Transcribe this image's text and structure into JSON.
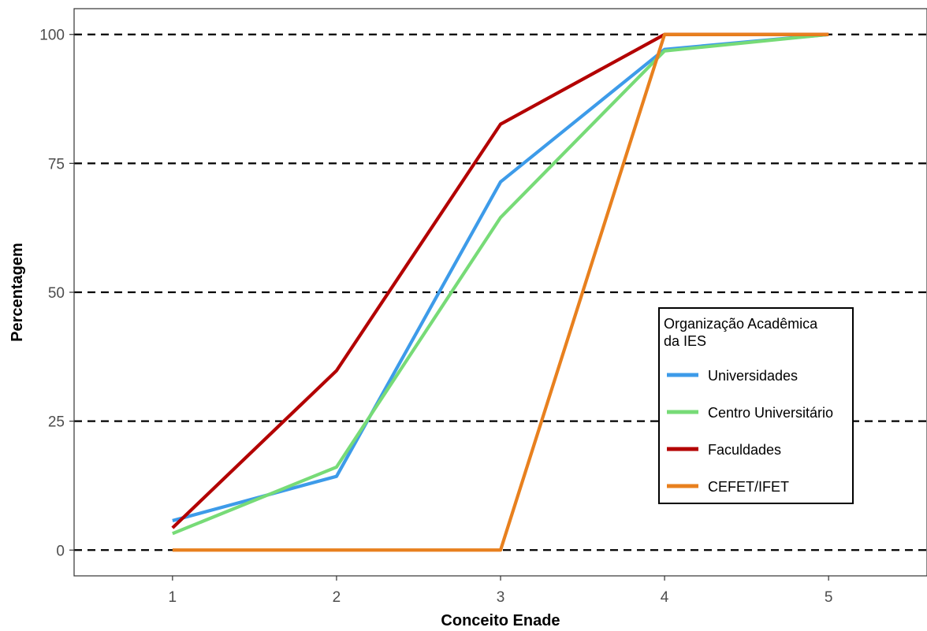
{
  "chart_data": {
    "type": "line",
    "xlabel": "Conceito Enade",
    "ylabel": "Percentagem",
    "x": [
      1,
      2,
      3,
      4,
      5
    ],
    "xlim": [
      0.4,
      5.6
    ],
    "ylim": [
      -5,
      105
    ],
    "x_ticks": [
      "1",
      "2",
      "3",
      "4",
      "5"
    ],
    "y_ticks": [
      "0",
      "25",
      "50",
      "75",
      "100"
    ],
    "y_tick_values": [
      0,
      25,
      50,
      75,
      100
    ],
    "grid": "horizontal dashed",
    "legend": {
      "title": "Organização Acadêmica\nda IES",
      "placement": "right"
    },
    "series": [
      {
        "name": "Universidades",
        "color": "#3d9be9",
        "values": [
          5.7,
          14.3,
          71.4,
          97.1,
          100
        ]
      },
      {
        "name": "Centro Universitário",
        "color": "#77db77",
        "values": [
          3.2,
          16.1,
          64.5,
          96.8,
          100
        ]
      },
      {
        "name": "Faculdades",
        "color": "#b30000",
        "values": [
          4.3,
          34.8,
          82.6,
          100,
          100
        ]
      },
      {
        "name": "CEFET/IFET",
        "color": "#e8801e",
        "values": [
          0,
          0,
          0,
          100,
          100
        ]
      }
    ]
  }
}
